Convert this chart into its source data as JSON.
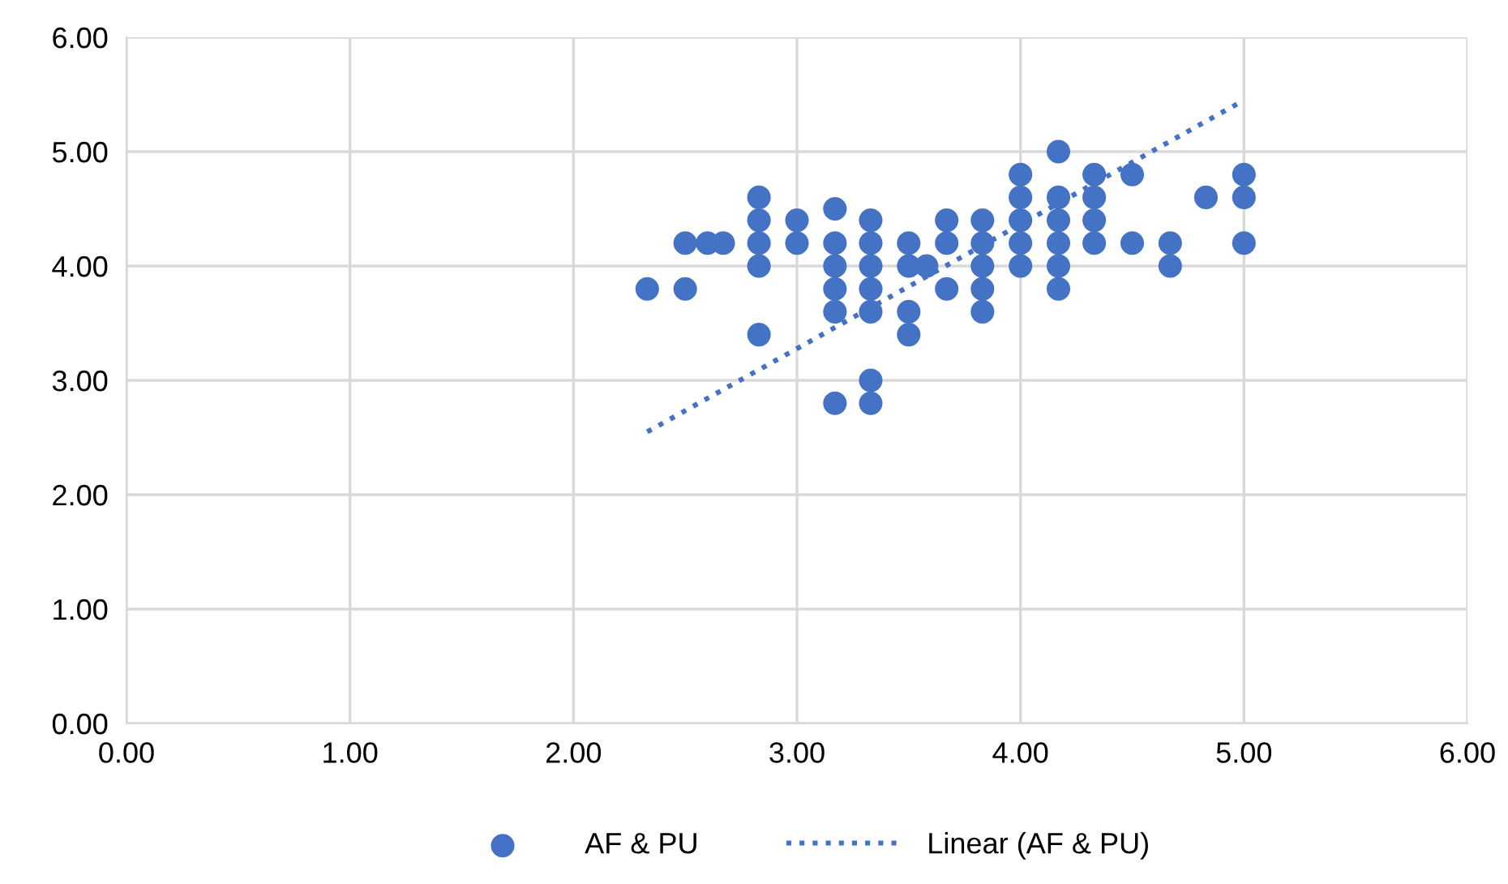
{
  "chart_data": {
    "type": "scatter",
    "series": [
      {
        "name": "AF & PU",
        "color": "#4472c4",
        "marker": "circle",
        "x": [
          2.33,
          2.5,
          2.5,
          2.6,
          2.67,
          2.83,
          2.83,
          2.83,
          2.83,
          2.83,
          3.0,
          3.0,
          3.17,
          3.17,
          3.17,
          3.17,
          3.17,
          3.17,
          3.33,
          3.33,
          3.33,
          3.33,
          3.33,
          3.33,
          3.33,
          3.5,
          3.5,
          3.5,
          3.5,
          3.58,
          3.67,
          3.67,
          3.67,
          3.83,
          3.83,
          3.83,
          3.83,
          3.83,
          4.0,
          4.0,
          4.0,
          4.0,
          4.0,
          4.17,
          4.17,
          4.17,
          4.17,
          4.17,
          4.17,
          4.33,
          4.33,
          4.33,
          4.33,
          4.5,
          4.5,
          4.67,
          4.67,
          4.83,
          5.0,
          5.0,
          5.0
        ],
        "values": [
          3.8,
          4.2,
          3.8,
          4.2,
          4.2,
          4.6,
          4.4,
          4.2,
          4.0,
          3.4,
          4.4,
          4.2,
          4.5,
          4.2,
          4.0,
          3.8,
          3.6,
          2.8,
          4.4,
          4.2,
          4.0,
          3.8,
          3.6,
          3.0,
          2.8,
          4.2,
          4.0,
          3.6,
          3.4,
          4.0,
          4.4,
          4.2,
          3.8,
          4.4,
          4.2,
          4.0,
          3.8,
          3.6,
          4.8,
          4.6,
          4.4,
          4.2,
          4.0,
          5.0,
          4.6,
          4.4,
          4.2,
          4.0,
          3.8,
          4.8,
          4.6,
          4.4,
          4.2,
          4.8,
          4.2,
          4.2,
          4.0,
          4.6,
          4.8,
          4.6,
          4.2
        ]
      },
      {
        "name": "Linear (AF & PU)",
        "type": "line",
        "color": "#4472c4",
        "line_style": "dotted",
        "marker": "none",
        "x": [
          2.33,
          5.0
        ],
        "values": [
          2.55,
          5.45
        ]
      }
    ],
    "xlim": [
      0,
      6
    ],
    "ylim": [
      0,
      6
    ],
    "xticks": [
      {
        "value": 0,
        "label": "0.00"
      },
      {
        "value": 1,
        "label": "1.00"
      },
      {
        "value": 2,
        "label": "2.00"
      },
      {
        "value": 3,
        "label": "3.00"
      },
      {
        "value": 4,
        "label": "4.00"
      },
      {
        "value": 5,
        "label": "5.00"
      },
      {
        "value": 6,
        "label": "6.00"
      }
    ],
    "yticks": [
      {
        "value": 0,
        "label": "0.00"
      },
      {
        "value": 1,
        "label": "1.00"
      },
      {
        "value": 2,
        "label": "2.00"
      },
      {
        "value": 3,
        "label": "3.00"
      },
      {
        "value": 4,
        "label": "4.00"
      },
      {
        "value": 5,
        "label": "5.00"
      },
      {
        "value": 6,
        "label": "6.00"
      }
    ],
    "grid": true,
    "legend": "bottom"
  }
}
